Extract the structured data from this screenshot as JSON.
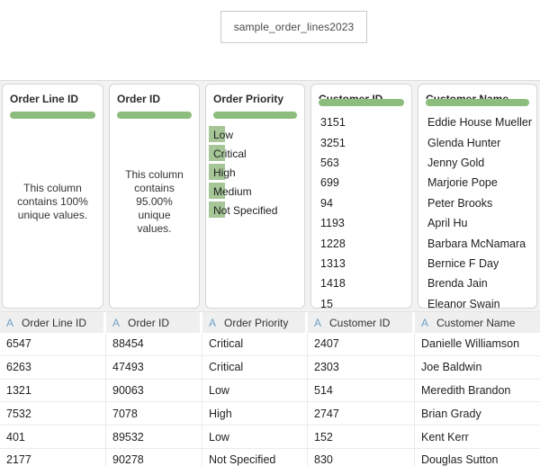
{
  "flow": {
    "node_label": "sample_order_lines2023"
  },
  "colors": {
    "summary_bar_green": "#8cbd7d",
    "category_bar_green": "#a6c697",
    "type_icon_blue": "#6fa0c6"
  },
  "profile_cards": [
    {
      "title": "Order Line ID",
      "kind": "summary",
      "summary": "This column contains 100% unique values."
    },
    {
      "title": "Order ID",
      "kind": "summary",
      "summary": "This column contains 95.00% unique values."
    },
    {
      "title": "Order Priority",
      "kind": "categories",
      "values": [
        "Low",
        "Critical",
        "High",
        "Medium",
        "Not Specified"
      ]
    },
    {
      "title": "Customer ID",
      "kind": "values",
      "values": [
        "3151",
        "3251",
        "563",
        "699",
        "94",
        "1193",
        "1228",
        "1313",
        "1418",
        "15"
      ]
    },
    {
      "title": "Customer Name",
      "kind": "values",
      "values": [
        "Eddie House Mueller",
        "Glenda Hunter",
        "Jenny Gold",
        "Marjorie Pope",
        "Peter Brooks",
        "April Hu",
        "Barbara McNamara",
        "Bernice F Day",
        "Brenda Jain",
        "Eleanor Swain"
      ]
    }
  ],
  "grid": {
    "type_icon": "A",
    "columns": [
      {
        "label": "Order Line ID"
      },
      {
        "label": "Order ID"
      },
      {
        "label": "Order Priority"
      },
      {
        "label": "Customer ID"
      },
      {
        "label": "Customer Name"
      }
    ],
    "rows": [
      [
        "6547",
        "88454",
        "Critical",
        "2407",
        "Danielle Williamson"
      ],
      [
        "6263",
        "47493",
        "Critical",
        "2303",
        "Joe Baldwin"
      ],
      [
        "1321",
        "90063",
        "Low",
        "514",
        "Meredith Brandon"
      ],
      [
        "7532",
        "7078",
        "High",
        "2747",
        "Brian Grady"
      ],
      [
        "401",
        "89532",
        "Low",
        "152",
        "Kent Kerr"
      ],
      [
        "2177",
        "90278",
        "Not Specified",
        "830",
        "Douglas Sutton"
      ]
    ]
  }
}
